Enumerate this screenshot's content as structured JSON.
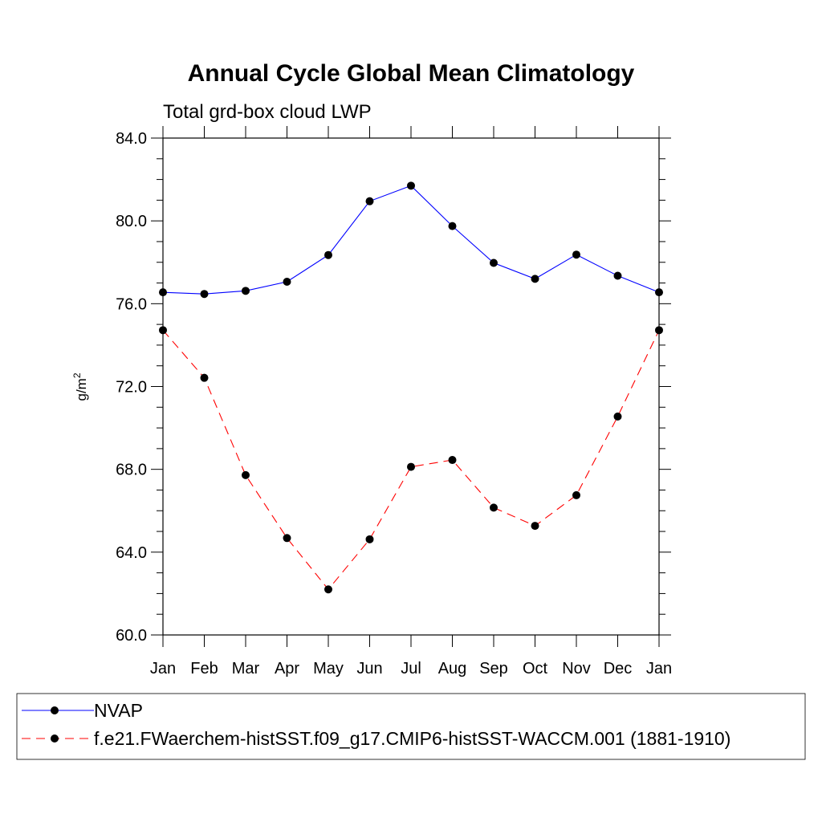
{
  "chart_data": {
    "type": "line",
    "title": "Annual Cycle Global Mean Climatology",
    "subtitle": "Total grd-box cloud LWP",
    "xlabel": "",
    "ylabel": "g/m",
    "ylabel_superscript": "2",
    "categories": [
      "Jan",
      "Feb",
      "Mar",
      "Apr",
      "May",
      "Jun",
      "Jul",
      "Aug",
      "Sep",
      "Oct",
      "Nov",
      "Dec",
      "Jan"
    ],
    "ylim": [
      60.0,
      84.0
    ],
    "yticks": [
      60.0,
      64.0,
      68.0,
      72.0,
      76.0,
      80.0,
      84.0
    ],
    "ytick_labels": [
      "60.0",
      "64.0",
      "68.0",
      "72.0",
      "76.0",
      "80.0",
      "84.0"
    ],
    "grid": false,
    "legend_position": "bottom",
    "series": [
      {
        "name": "NVAP",
        "color": "#0000ff",
        "line_style": "solid",
        "marker": "filled-circle",
        "values": [
          76.55,
          76.47,
          76.62,
          77.06,
          78.35,
          80.95,
          81.7,
          79.75,
          77.97,
          77.2,
          78.37,
          77.35,
          76.55
        ]
      },
      {
        "name": "f.e21.FWaerchem-histSST.f09_g17.CMIP6-histSST-WACCM.001 (1881-1910)",
        "color": "#ff0000",
        "line_style": "dashed",
        "marker": "filled-circle",
        "values": [
          74.72,
          72.42,
          67.72,
          64.68,
          62.2,
          64.62,
          68.12,
          68.45,
          66.15,
          65.27,
          66.75,
          70.55,
          74.72
        ]
      }
    ]
  }
}
